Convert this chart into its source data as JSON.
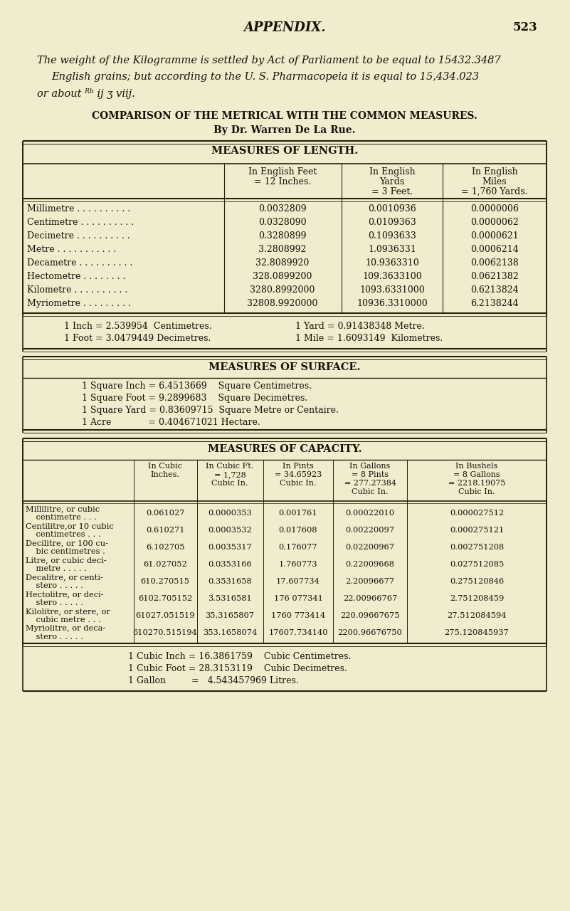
{
  "bg_color": "#f0ecce",
  "text_color": "#1a1008",
  "page_number": "523",
  "title": "APPENDIX.",
  "intro_lines": [
    "The weight of the Kilogramme is settled by Act of Parliament to be equal to 15432.3487",
    "English grains; but according to the U. S. Pharmacopeia it is equal to 15,434.023",
    "or about ᴿᵇ ij ʒ viij."
  ],
  "section_title": "COMPARISON OF THE METRICAL WITH THE COMMON MEASURES.",
  "section_subtitle": "By Dr. Warren De La Rue.",
  "length_title": "MEASURES OF LENGTH.",
  "length_col_headers": [
    "In English Feet\n= 12 Inches.",
    "In English\nYards\n= 3 Feet.",
    "In English\nMiles\n= 1,760 Yards."
  ],
  "length_rows": [
    [
      "Millimetre . . . . . . . . . .",
      "0.0032809",
      "0.0010936",
      "0.0000006"
    ],
    [
      "Centimetre . . . . . . . . . .",
      "0.0328090",
      "0.0109363",
      "0.0000062"
    ],
    [
      "Decimetre . . . . . . . . . .",
      "0.3280899",
      "0.1093633",
      "0.0000621"
    ],
    [
      "Metre . . . . . . . . . . .",
      "3.2808992",
      "1.0936331",
      "0.0006214"
    ],
    [
      "Decametre . . . . . . . . . .",
      "32.8089920",
      "10.9363310",
      "0.0062138"
    ],
    [
      "Hectometre . . . . . . . .",
      "328.0899200",
      "109.3633100",
      "0.0621382"
    ],
    [
      "Kilometre . . . . . . . . . .",
      "3280.8992000",
      "1093.6331000",
      "0.6213824"
    ],
    [
      "Myriometre . . . . . . . . .",
      "32808.9920000",
      "10936.3310000",
      "6.2138244"
    ]
  ],
  "length_notes": [
    [
      "1 Inch = 2.539954  Centimetres.",
      "1 Yard = 0.91438348 Metre."
    ],
    [
      "1 Foot = 3.0479449 Decimetres.",
      "1 Mile = 1.6093149  Kilometres."
    ]
  ],
  "surface_title": "MEASURES OF SURFACE.",
  "surface_notes": [
    "1 Square Inch = 6.4513669    Square Centimetres.",
    "1 Square Foot = 9.2899683    Square Decimetres.",
    "1 Square Yard = 0.83609715  Square Metre or Centaire.",
    "1 Acre             = 0.404671021 Hectare."
  ],
  "capacity_title": "MEASURES OF CAPACITY.",
  "capacity_col_headers": [
    "In Cubic\nInches.",
    "In Cubic Ft.\n= 1,728\nCubic In.",
    "In Pints\n= 34.65923\nCubic In.",
    "In Gallons\n= 8 Pints\n= 277.27384\nCubic In.",
    "In Bushels\n= 8 Gallons\n= 2218.19075\nCubic In."
  ],
  "capacity_rows": [
    [
      "Millilitre, or cubic\n    centimetre . . .",
      "0.061027",
      "0.0000353",
      "0.001761",
      "0.00022010",
      "0.000027512"
    ],
    [
      "Centilitre,or 10 cubic\n    centimetres . . .",
      "0.610271",
      "0.0003532",
      "0.017608",
      "0.00220097",
      "0.000275121"
    ],
    [
      "Decilitre, or 100 cu-\n    bic centimetres .",
      "6.102705",
      "0.0035317",
      "0.176077",
      "0.02200967",
      "0.002751208"
    ],
    [
      "Litre, or cubic deci-\n    metre . . . . .",
      "61.027052",
      "0.0353166",
      "1.760773",
      "0.22009668",
      "0.027512085"
    ],
    [
      "Decalitre, or centi-\n    stero . . . . .",
      "610.270515",
      "0.3531658",
      "17.607734",
      "2.20096677",
      "0.275120846"
    ],
    [
      "Hectolitre, or deci-\n    stero . . . . .",
      "6102.705152",
      "3.5316581",
      "176 077341",
      "22.00966767",
      "2.751208459"
    ],
    [
      "Kilolitre, or stere, or\n    cubic metre . . .",
      "61027.051519",
      "35.3165807",
      "1760 773414",
      "220.09667675",
      "27.512084594"
    ],
    [
      "Myriolitre, or deca-\n    stero . . . . .",
      "610270.515194",
      "353.1658074",
      "17607.734140",
      "2200.96676750",
      "275.120845937"
    ]
  ],
  "capacity_notes": [
    "1 Cubic Inch = 16.3861759    Cubic Centimetres.",
    "1 Cubic Foot = 28.3153119    Cubic Decimetres.",
    "1 Gallon         =   4.543457969 Litres."
  ]
}
